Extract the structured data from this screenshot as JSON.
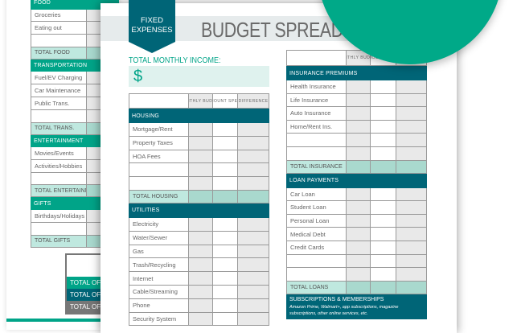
{
  "title": "BUDGET SPREADSHEET",
  "badge": {
    "line1": "FIXED",
    "line2": "EXPENSES"
  },
  "income": {
    "label": "TOTAL MONTHLY INCOME:",
    "symbol": "$"
  },
  "columns": [
    "MONTHLY BUDGET",
    "AMOUNT SPENT",
    "DIFFERENCE"
  ],
  "colors": {
    "teal_green": "#00a488",
    "dark_teal": "#006577",
    "total_row": "#bfe8df",
    "circle": "#00a988"
  },
  "back_page": {
    "sections": [
      {
        "header": "FOOD",
        "items": [
          "Groceries",
          "Eating out",
          ""
        ],
        "total": "TOTAL FOOD"
      },
      {
        "header": "TRANSPORTATION",
        "items": [
          "Fuel/EV Charging",
          "Car Maintenance",
          "Public Trans.",
          ""
        ],
        "total": "TOTAL TRANS."
      },
      {
        "header": "ENTERTAINMENT",
        "items": [
          "Movies/Events",
          "Activities/Hobbies",
          ""
        ],
        "total": "TOTAL ENTERTAINMENT"
      },
      {
        "header": "GIFTS",
        "items": [
          "Birthdays/Holidays",
          ""
        ],
        "total": "TOTAL GIFTS"
      }
    ],
    "totals": [
      "TOTAL OF AL",
      "TOTAL OF AL",
      "TOTAL OF AL"
    ]
  },
  "left_table": {
    "sections": [
      {
        "header": "HOUSING",
        "items": [
          "Mortgage/Rent",
          "Property Taxes",
          "HOA Fees",
          "",
          ""
        ],
        "total": "TOTAL HOUSING"
      },
      {
        "header": "UTILITIES",
        "items": [
          "Electricity",
          "Water/Sewer",
          "Gas",
          "Trash/Recycling",
          "Internet",
          "Cable/Streaming",
          "Phone",
          "Security System"
        ]
      }
    ]
  },
  "right_table": {
    "sections": [
      {
        "header": "INSURANCE PREMIUMS",
        "items": [
          "Health Insurance",
          "Life Insurance",
          "Auto Insurance",
          "Home/Rent Ins.",
          "",
          ""
        ],
        "total": "TOTAL INSURANCE"
      },
      {
        "header": "LOAN PAYMENTS",
        "items": [
          "Car Loan",
          "Student Loan",
          "Personal Loan",
          "Medical Debt",
          "Credit Cards",
          "",
          ""
        ],
        "total": "TOTAL LOANS"
      }
    ],
    "subscriptions": {
      "header": "SUBSCRIPTIONS & MEMBERSHIPS",
      "note": "Amazon Prime, Walmart+, app subscriptions, magazine subscriptions, other online services, etc."
    }
  }
}
